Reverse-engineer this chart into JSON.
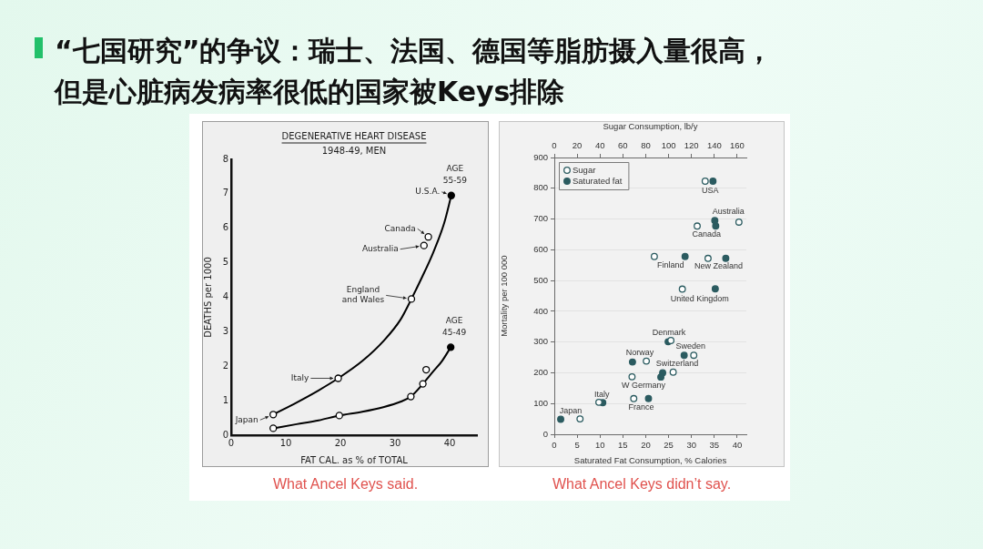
{
  "chart_data": [
    {
      "type": "scatter",
      "title": "DEGENERATIVE HEART DISEASE",
      "subtitle": "1948-49, MEN",
      "xlabel": "FAT CAL. as % of TOTAL",
      "ylabel": "DEATHS per 1000",
      "xlim": [
        0,
        45
      ],
      "xticks": [
        0,
        10,
        20,
        30,
        40
      ],
      "ylim": [
        0,
        8
      ],
      "yticks": [
        0,
        1,
        2,
        3,
        4,
        5,
        6,
        7,
        8
      ],
      "marker": "circle",
      "series": [
        {
          "name": "AGE 55-59",
          "type": "line",
          "marker": "none",
          "color": "#000000",
          "x": [
            7.7,
            12,
            16,
            19.6,
            24,
            28,
            31,
            33,
            35,
            37,
            39,
            40.3
          ],
          "values": [
            0.6,
            0.95,
            1.3,
            1.65,
            2.15,
            2.75,
            3.35,
            3.95,
            4.6,
            5.3,
            6.15,
            6.95
          ]
        },
        {
          "type": "scatter",
          "color": "#000000",
          "colors": [
            "#ffffff",
            "#ffffff",
            "#ffffff",
            "#ffffff",
            "#ffffff",
            "#000000"
          ],
          "x": [
            7.7,
            19.6,
            33,
            35.3,
            36.1,
            40.3
          ],
          "values": [
            0.6,
            1.65,
            3.95,
            5.5,
            5.75,
            6.95
          ]
        },
        {
          "name": "AGE 45-49",
          "type": "line",
          "marker": "none",
          "color": "#000000",
          "x": [
            7.7,
            12,
            16,
            19.8,
            24,
            28,
            31,
            32.9,
            35.1,
            37,
            38.6,
            40.2
          ],
          "values": [
            0.2,
            0.32,
            0.43,
            0.57,
            0.68,
            0.82,
            0.97,
            1.12,
            1.49,
            1.85,
            2.15,
            2.55
          ]
        },
        {
          "type": "scatter",
          "color": "#000000",
          "colors": [
            "#ffffff",
            "#ffffff",
            "#ffffff",
            "#ffffff",
            "#ffffff",
            "#000000"
          ],
          "x": [
            7.7,
            19.8,
            32.9,
            35.1,
            35.7,
            40.2
          ],
          "values": [
            0.2,
            0.57,
            1.12,
            1.49,
            1.9,
            2.55
          ]
        }
      ],
      "annotations": [
        "“七国研究”的争议：瑞士、法国、德国等脂肪摄入量很高，但是心脏病发病率很低的国家被Keys排除",
        "What Ancel Keys said.",
        {
          "text": "U.S.A.",
          "x": 40.3,
          "y": 6.95
        },
        {
          "text": "Canada",
          "x": 36.1,
          "y": 5.75
        },
        {
          "text": "Australia",
          "x": 35.3,
          "y": 5.5
        },
        {
          "text": "England and Wales",
          "x": 33,
          "y": 3.95
        },
        {
          "text": "Italy",
          "x": 19.6,
          "y": 1.65
        },
        {
          "text": "Japan",
          "x": 7.7,
          "y": 0.6
        }
      ]
    },
    {
      "type": "scatter",
      "xlabel": "Saturated Fat Consumption, % Calories",
      "x2label": "Sugar Consumption, lb/y",
      "ylabel": "Mortality per 100 000",
      "xlim": [
        0,
        42
      ],
      "xticks": [
        0,
        5,
        10,
        15,
        20,
        25,
        30,
        35,
        40
      ],
      "x2lim": [
        0,
        168
      ],
      "x2ticks": [
        0,
        20,
        40,
        60,
        80,
        100,
        120,
        140,
        160
      ],
      "ylim": [
        0,
        900
      ],
      "yticks": [
        0,
        100,
        200,
        300,
        400,
        500,
        600,
        700,
        800,
        900
      ],
      "grid": "y",
      "legend": "top left",
      "marker": "circle",
      "series": [
        {
          "name": "Sugar",
          "axis": "x2",
          "color": "#2b5b60",
          "colors": [
            "#ffffff",
            "#ffffff",
            "#ffffff",
            "#ffffff",
            "#ffffff",
            "#ffffff",
            "#ffffff",
            "#ffffff",
            "#ffffff",
            "#ffffff",
            "#ffffff",
            "#ffffff",
            "#ffffff",
            "#ffffff"
          ],
          "x": [
            132,
            161.5,
            125,
            87.5,
            134.5,
            112,
            102,
            122,
            80.5,
            104,
            68,
            39,
            69.5,
            22.5
          ],
          "values": [
            823,
            690,
            677,
            578,
            572,
            472,
            305,
            257,
            238,
            202,
            187,
            104,
            116,
            50
          ]
        },
        {
          "name": "Saturated fat",
          "color": "#2b5b60",
          "x": [
            34.7,
            35.1,
            35.3,
            28.6,
            37.5,
            35.2,
            24.9,
            28.4,
            17.1,
            23.7,
            23.3,
            10.6,
            20.6,
            1.4
          ],
          "values": [
            823,
            695,
            677,
            578,
            572,
            473,
            301,
            257,
            235,
            200,
            186,
            103,
            116,
            49
          ]
        }
      ],
      "annotations": [
        "What Ancel Keys didn’t say.",
        {
          "text": "USA",
          "x": 34.7,
          "y": 823
        },
        {
          "text": "Australia",
          "x": 35.1,
          "y": 695
        },
        {
          "text": "Canada",
          "x": 35.3,
          "y": 677
        },
        {
          "text": "Finland",
          "x": 28.6,
          "y": 578
        },
        {
          "text": "New Zealand",
          "x": 37.5,
          "y": 572
        },
        {
          "text": "United Kingdom",
          "x": 35.2,
          "y": 473
        },
        {
          "text": "Denmark",
          "x": 24.9,
          "y": 301
        },
        {
          "text": "Sweden",
          "x": 28.4,
          "y": 257
        },
        {
          "text": "Norway",
          "x": 17.1,
          "y": 235
        },
        {
          "text": "Switzerland",
          "x": 23.7,
          "y": 200
        },
        {
          "text": "W Germany",
          "x": 23.3,
          "y": 186
        },
        {
          "text": "Italy",
          "x": 10.6,
          "y": 103
        },
        {
          "text": "France",
          "x": 20.6,
          "y": 116
        },
        {
          "text": "Japan",
          "x": 1.4,
          "y": 49
        }
      ]
    }
  ]
}
